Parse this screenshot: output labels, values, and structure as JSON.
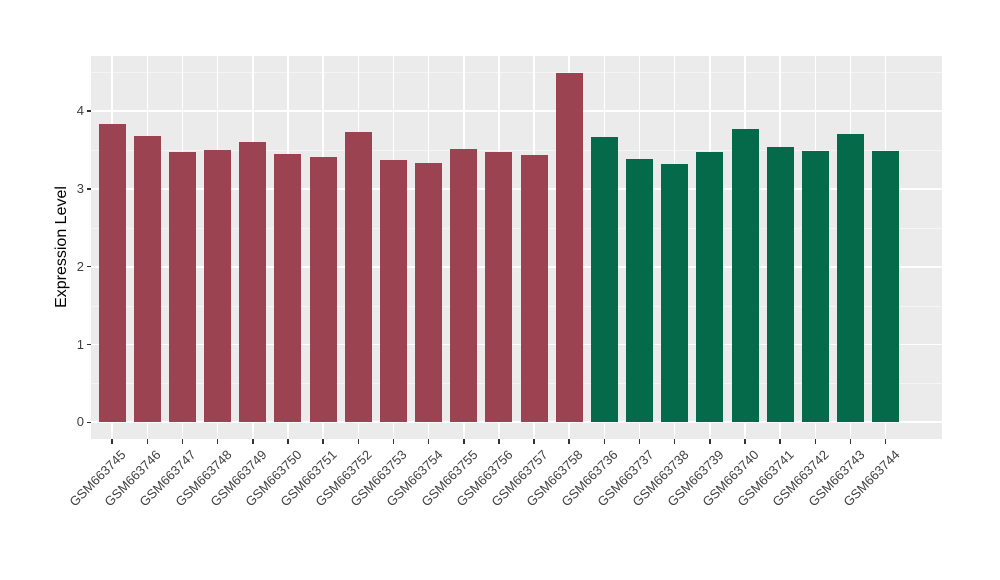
{
  "figure": {
    "background": "#ffffff"
  },
  "chart_data": {
    "type": "bar",
    "title": "",
    "xlabel": "",
    "ylabel": "Expression Level",
    "yticks": [
      "0",
      "1",
      "2",
      "3",
      "4"
    ],
    "ylim": [
      -0.22,
      4.7
    ],
    "grid": "white major and minor gridlines on gray panel",
    "legend_position": "none",
    "panel_background": "#ebebeb",
    "grid_major_color": "#ffffff",
    "grid_minor_color": "#f5f5f5",
    "axis_text_color": "#404040",
    "axis_title_color": "#000000",
    "group_colors": {
      "A": "#9c4351",
      "B": "#046a4a"
    },
    "bars": [
      {
        "label": "GSM663745",
        "value": 3.83,
        "group": "A"
      },
      {
        "label": "GSM663746",
        "value": 3.68,
        "group": "A"
      },
      {
        "label": "GSM663747",
        "value": 3.47,
        "group": "A"
      },
      {
        "label": "GSM663748",
        "value": 3.5,
        "group": "A"
      },
      {
        "label": "GSM663749",
        "value": 3.6,
        "group": "A"
      },
      {
        "label": "GSM663750",
        "value": 3.45,
        "group": "A"
      },
      {
        "label": "GSM663751",
        "value": 3.41,
        "group": "A"
      },
      {
        "label": "GSM663752",
        "value": 3.73,
        "group": "A"
      },
      {
        "label": "GSM663753",
        "value": 3.37,
        "group": "A"
      },
      {
        "label": "GSM663754",
        "value": 3.33,
        "group": "A"
      },
      {
        "label": "GSM663755",
        "value": 3.51,
        "group": "A"
      },
      {
        "label": "GSM663756",
        "value": 3.47,
        "group": "A"
      },
      {
        "label": "GSM663757",
        "value": 3.44,
        "group": "A"
      },
      {
        "label": "GSM663758",
        "value": 4.49,
        "group": "A"
      },
      {
        "label": "GSM663736",
        "value": 3.67,
        "group": "B"
      },
      {
        "label": "GSM663737",
        "value": 3.38,
        "group": "B"
      },
      {
        "label": "GSM663738",
        "value": 3.32,
        "group": "B"
      },
      {
        "label": "GSM663739",
        "value": 3.47,
        "group": "B"
      },
      {
        "label": "GSM663740",
        "value": 3.77,
        "group": "B"
      },
      {
        "label": "GSM663741",
        "value": 3.54,
        "group": "B"
      },
      {
        "label": "GSM663742",
        "value": 3.49,
        "group": "B"
      },
      {
        "label": "GSM663743",
        "value": 3.71,
        "group": "B"
      },
      {
        "label": "GSM663744",
        "value": 3.49,
        "group": "B"
      }
    ]
  }
}
